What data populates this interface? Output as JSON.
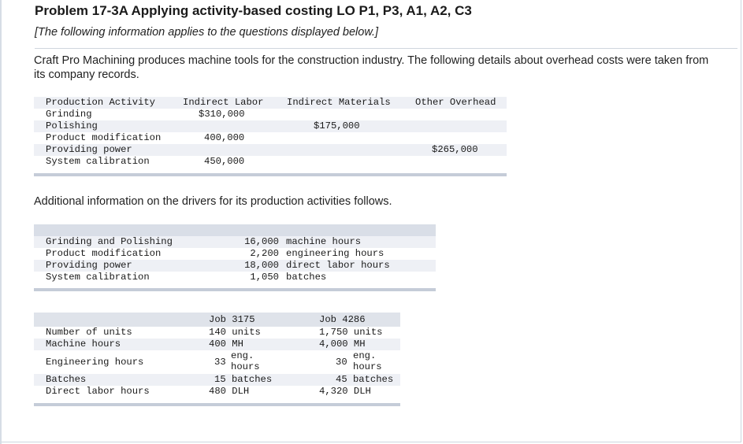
{
  "header": {
    "title": "Problem 17-3A Applying activity-based costing LO P1, P3, A1, A2, C3",
    "subtitle": "[The following information applies to the questions displayed below.]"
  },
  "intro_text": "Craft Pro Machining produces machine tools for the construction industry. The following details about overhead costs were taken from its company records.",
  "cost_table": {
    "headers": [
      "Production Activity",
      "Indirect Labor",
      "Indirect Materials",
      "Other Overhead"
    ],
    "rows": [
      [
        "Grinding",
        "$310,000",
        "",
        ""
      ],
      [
        "Polishing",
        "",
        "$175,000",
        ""
      ],
      [
        "Product modification",
        "400,000",
        "",
        ""
      ],
      [
        "Providing power",
        "",
        "",
        "$265,000"
      ],
      [
        "System calibration",
        "450,000",
        "",
        ""
      ]
    ]
  },
  "drivers_intro": "Additional information on the drivers for its production activities follows.",
  "drivers_table": {
    "rows": [
      [
        "Grinding and Polishing",
        "16,000",
        "machine hours"
      ],
      [
        "Product modification",
        "2,200",
        "engineering hours"
      ],
      [
        "Providing power",
        "18,000",
        "direct labor hours"
      ],
      [
        "System calibration",
        "1,050",
        "batches"
      ]
    ]
  },
  "jobs_table": {
    "headers": [
      "",
      "Job 3175",
      "Job 4286"
    ],
    "rows": [
      {
        "label": "Number of units",
        "job1": "140 units",
        "job2": "1,750 units"
      },
      {
        "label": "Machine hours",
        "job1": "400 MH",
        "job2": "4,000 MH"
      },
      {
        "label": "Engineering hours",
        "job1_num": "33",
        "job1_unit": "eng.",
        "job1_unit2": "hours",
        "job2_num": "30",
        "job2_unit": "eng.",
        "job2_unit2": "hours"
      },
      {
        "label": "Batches",
        "job1": "15 batches",
        "job2": "45 batches"
      },
      {
        "label": "Direct labor hours",
        "job1": "480 DLH",
        "job2": "4,320 DLH"
      }
    ]
  }
}
